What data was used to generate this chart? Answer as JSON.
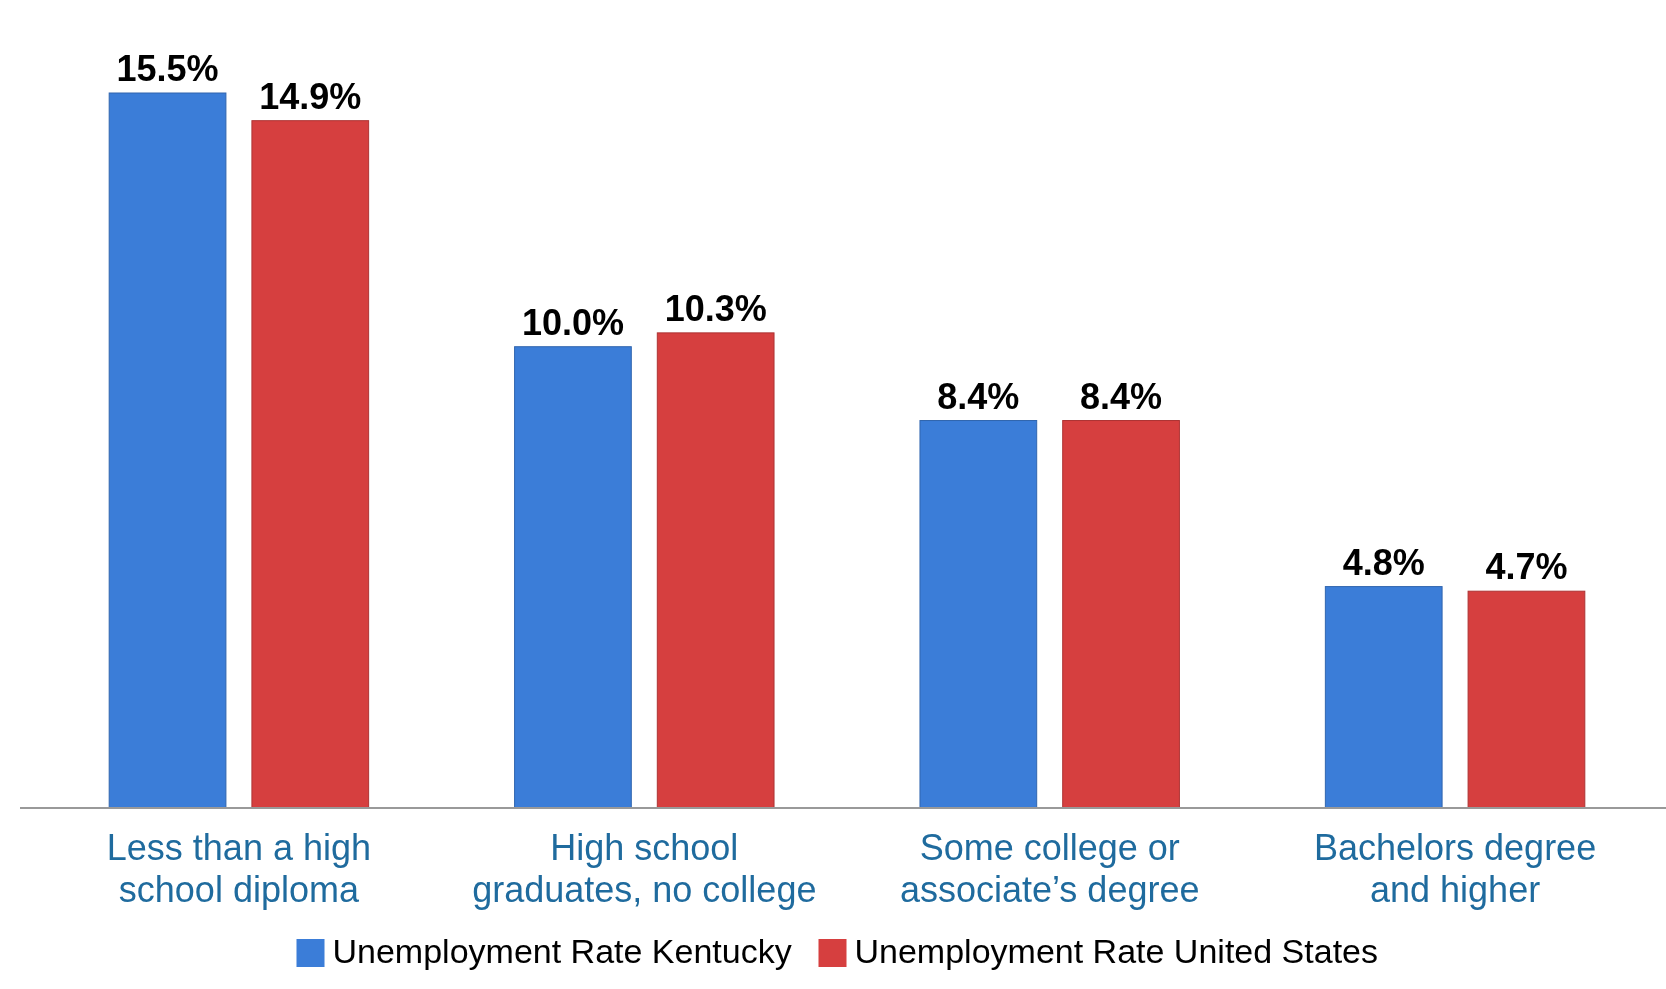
{
  "chart_data": {
    "type": "bar",
    "categories": [
      "Less than a high school diploma",
      "High school graduates, no college",
      "Some college or associate’s degree",
      "Bachelors degree and higher"
    ],
    "series": [
      {
        "name": "Unemployment Rate Kentucky",
        "color": "#3b7dd8",
        "values": [
          15.5,
          10.0,
          8.4,
          4.8
        ],
        "value_labels": [
          "15.5%",
          "10.0%",
          "8.4%",
          "4.8%"
        ]
      },
      {
        "name": "Unemployment Rate United States",
        "color": "#d63f3f",
        "values": [
          14.9,
          10.3,
          8.4,
          4.7
        ],
        "value_labels": [
          "14.9%",
          "10.3%",
          "8.4%",
          "4.7%"
        ]
      }
    ],
    "legend": "bottom"
  }
}
